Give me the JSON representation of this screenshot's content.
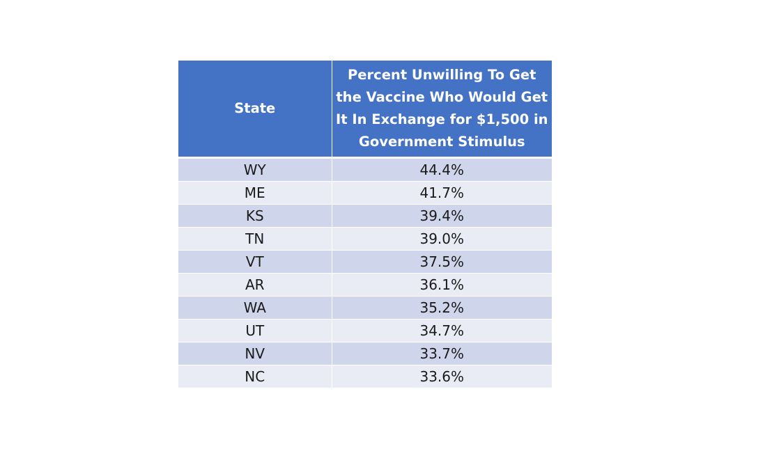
{
  "chart_data": {
    "type": "table",
    "columns": [
      "State",
      "Percent Unwilling To Get the Vaccine Who Would Get It In Exchange for $1,500 in Government Stimulus"
    ],
    "rows": [
      {
        "state": "WY",
        "value": "44.4%"
      },
      {
        "state": "ME",
        "value": "41.7%"
      },
      {
        "state": "KS",
        "value": "39.4%"
      },
      {
        "state": "TN",
        "value": "39.0%"
      },
      {
        "state": "VT",
        "value": "37.5%"
      },
      {
        "state": "AR",
        "value": "36.1%"
      },
      {
        "state": "WA",
        "value": "35.2%"
      },
      {
        "state": "UT",
        "value": "34.7%"
      },
      {
        "state": "NV",
        "value": "33.7%"
      },
      {
        "state": "NC",
        "value": "33.6%"
      }
    ],
    "colors": {
      "header_bg": "#4472c4",
      "header_text": "#ffffff",
      "row_dark": "#cfd5ea",
      "row_light": "#e9ebf5"
    }
  }
}
